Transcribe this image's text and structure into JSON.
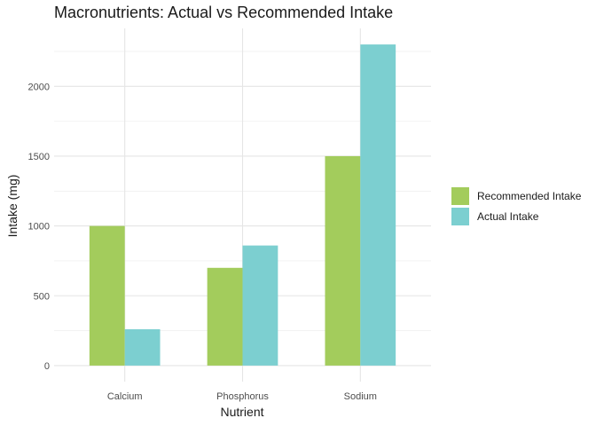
{
  "chart_data": {
    "type": "bar",
    "title": "Macronutrients: Actual vs Recommended Intake",
    "xlabel": "Nutrient",
    "ylabel": "Intake (mg)",
    "categories": [
      "Calcium",
      "Phosphorus",
      "Sodium"
    ],
    "series": [
      {
        "name": "Recommended Intake",
        "color": "#a3cc5c",
        "values": [
          1000,
          700,
          1500
        ]
      },
      {
        "name": "Actual Intake",
        "color": "#7ccfd0",
        "values": [
          260,
          860,
          2300
        ]
      }
    ],
    "yticks": [
      0,
      500,
      1000,
      1500,
      2000
    ],
    "ylim": [
      -115,
      2415
    ],
    "grid": true,
    "legend_position": "right"
  }
}
